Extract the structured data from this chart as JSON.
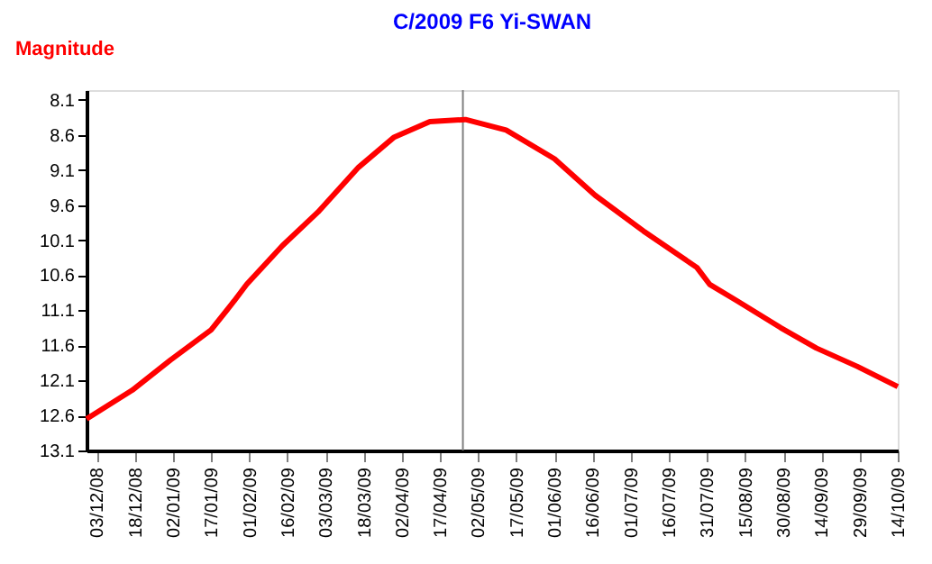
{
  "chart_data": {
    "type": "line",
    "title": "C/2009 F6 Yi-SWAN",
    "ylabel": "Magnitude",
    "x": [
      "2008-11-29",
      "2008-12-17",
      "2009-01-01",
      "2009-01-17",
      "2009-01-26",
      "2009-01-31",
      "2009-02-14",
      "2009-02-28",
      "2009-03-16",
      "2009-03-30",
      "2009-04-13",
      "2009-04-27",
      "2009-05-13",
      "2009-06-01",
      "2009-06-17",
      "2009-07-06",
      "2009-07-27",
      "2009-08-01",
      "2009-08-12",
      "2009-08-29",
      "2009-09-12",
      "2009-09-28",
      "2009-10-14"
    ],
    "series": [
      {
        "color": "#ff0000",
        "values": [
          12.65,
          12.24,
          11.81,
          11.38,
          10.97,
          10.73,
          10.18,
          9.7,
          9.06,
          8.63,
          8.41,
          8.38,
          8.53,
          8.94,
          9.46,
          9.97,
          10.49,
          10.73,
          10.97,
          11.35,
          11.64,
          11.9,
          12.19
        ]
      }
    ],
    "xlim": [
      "2008-11-29",
      "2009-10-14"
    ],
    "xticks": [
      {
        "value": "2008-12-03",
        "label": "03/12/08"
      },
      {
        "value": "2008-12-18",
        "label": "18/12/08"
      },
      {
        "value": "2009-01-02",
        "label": "02/01/09"
      },
      {
        "value": "2009-01-17",
        "label": "17/01/09"
      },
      {
        "value": "2009-02-01",
        "label": "01/02/09"
      },
      {
        "value": "2009-02-16",
        "label": "16/02/09"
      },
      {
        "value": "2009-03-03",
        "label": "03/03/09"
      },
      {
        "value": "2009-03-18",
        "label": "18/03/09"
      },
      {
        "value": "2009-04-02",
        "label": "02/04/09"
      },
      {
        "value": "2009-04-17",
        "label": "17/04/09"
      },
      {
        "value": "2009-05-02",
        "label": "02/05/09"
      },
      {
        "value": "2009-05-17",
        "label": "17/05/09"
      },
      {
        "value": "2009-06-01",
        "label": "01/06/09"
      },
      {
        "value": "2009-06-16",
        "label": "16/06/09"
      },
      {
        "value": "2009-07-01",
        "label": "01/07/09"
      },
      {
        "value": "2009-07-16",
        "label": "16/07/09"
      },
      {
        "value": "2009-07-31",
        "label": "31/07/09"
      },
      {
        "value": "2009-08-15",
        "label": "15/08/09"
      },
      {
        "value": "2009-08-30",
        "label": "30/08/09"
      },
      {
        "value": "2009-09-14",
        "label": "14/09/09"
      },
      {
        "value": "2009-09-29",
        "label": "29/09/09"
      },
      {
        "value": "2009-10-14",
        "label": "14/10/09"
      }
    ],
    "ylim": [
      13.1,
      7.96
    ],
    "yticks": [
      8.1,
      8.6,
      9.1,
      9.6,
      10.1,
      10.6,
      11.1,
      11.6,
      12.1,
      12.6,
      13.1
    ],
    "ref_lines": [
      {
        "axis": "x",
        "value": "2009-04-26",
        "color": "#808080"
      }
    ],
    "grid": false,
    "marker": "none",
    "line_style": "solid"
  }
}
